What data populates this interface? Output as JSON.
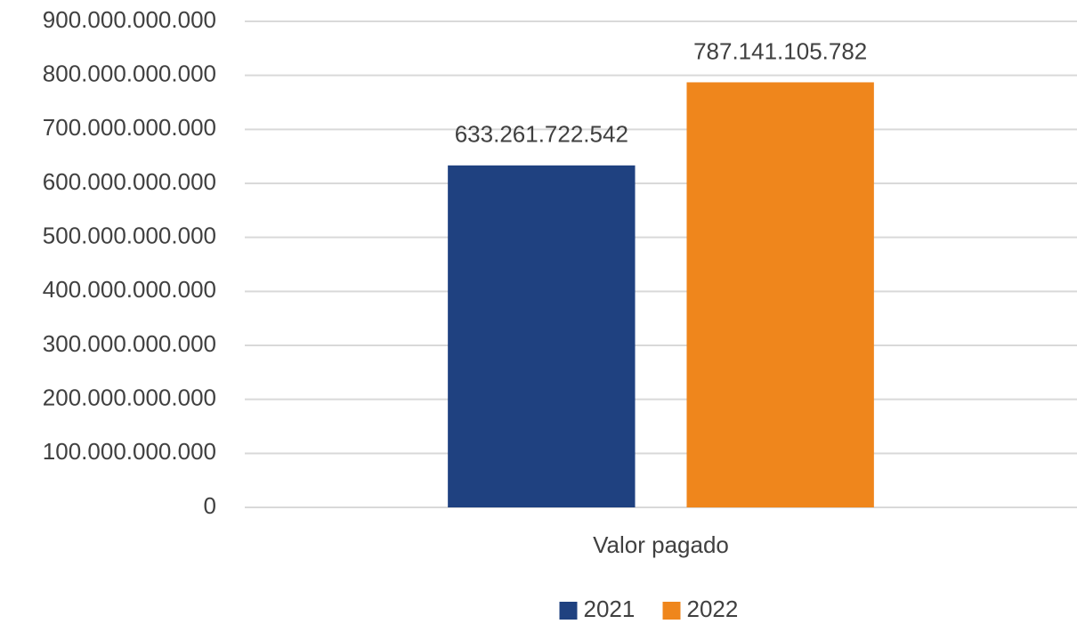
{
  "chart_data": {
    "type": "bar",
    "categories": [
      "Valor pagado"
    ],
    "series": [
      {
        "name": "2021",
        "color": "#1f4180",
        "values": [
          633261722542
        ],
        "value_labels": [
          "633.261.722.542"
        ]
      },
      {
        "name": "2022",
        "color": "#ef861c",
        "values": [
          787141105782
        ],
        "value_labels": [
          "787.141.105.782"
        ]
      }
    ],
    "ylim": [
      0,
      900000000000
    ],
    "yticks": [
      0,
      {
        "value": 100000000000,
        "label": "100.000.000.000"
      },
      {
        "value": 200000000000,
        "label": "200.000.000.000"
      },
      {
        "value": 300000000000,
        "label": "300.000.000.000"
      },
      {
        "value": 400000000000,
        "label": "400.000.000.000"
      },
      {
        "value": 500000000000,
        "label": "500.000.000.000"
      },
      {
        "value": 600000000000,
        "label": "600.000.000.000"
      },
      {
        "value": 700000000000,
        "label": "700.000.000.000"
      },
      {
        "value": 800000000000,
        "label": "800.000.000.000"
      },
      {
        "value": 900000000000,
        "label": "900.000.000.000"
      }
    ],
    "grid": true,
    "legend": "bottom"
  }
}
